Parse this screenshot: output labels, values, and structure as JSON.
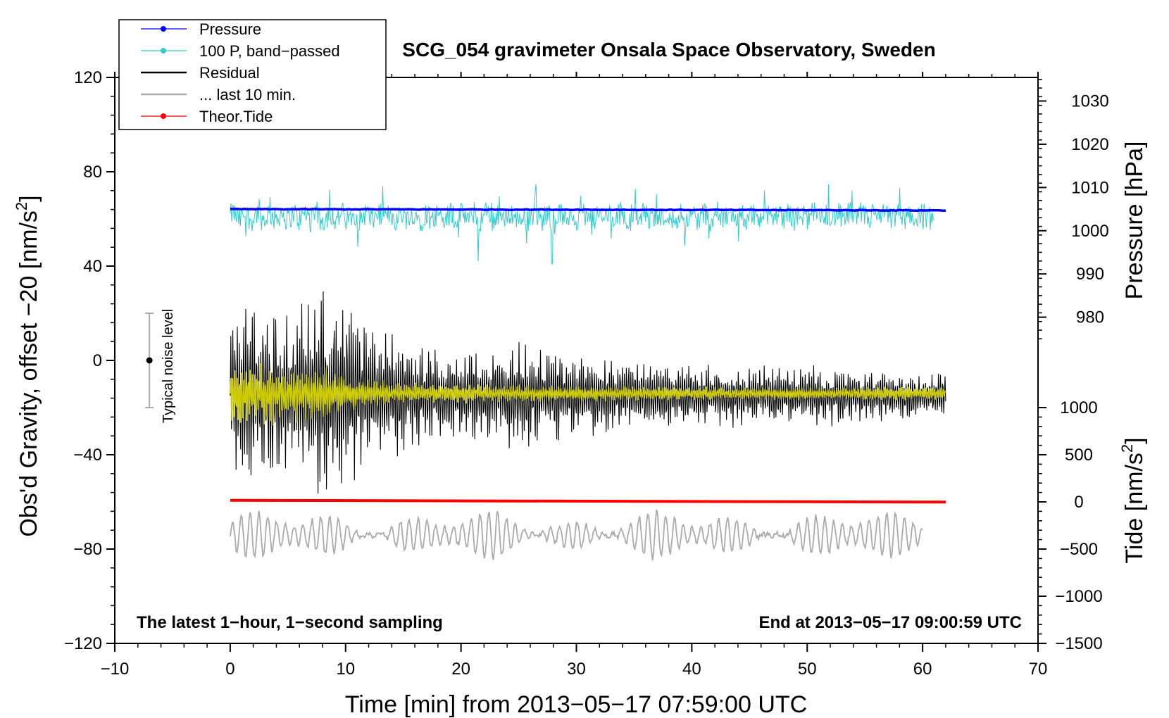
{
  "chart_data": {
    "type": "line",
    "title": "SCG_054 gravimeter Onsala Space Observatory, Sweden",
    "xlabel": "Time [min] from 2013−05−17 07:59:00 UTC",
    "ylabel_left": "Obs'd Gravity, offset −20 [nm/s²]",
    "ylabel_left_base": "Obs'd Gravity, offset −20 [nm/s",
    "ylabel_left_sup": "2",
    "ylabel_left_end": "]",
    "ylabel_right_top": "Pressure [hPa]",
    "ylabel_right_bottom_base": "Tide [nm/s",
    "ylabel_right_bottom_sup": "2",
    "ylabel_right_bottom_end": "]",
    "xlim": [
      -10,
      70
    ],
    "ylim": [
      -120,
      120
    ],
    "x_ticks": [
      {
        "value": -10,
        "label": "−10"
      },
      {
        "value": 0,
        "label": "0"
      },
      {
        "value": 10,
        "label": "10"
      },
      {
        "value": 20,
        "label": "20"
      },
      {
        "value": 30,
        "label": "30"
      },
      {
        "value": 40,
        "label": "40"
      },
      {
        "value": 50,
        "label": "50"
      },
      {
        "value": 60,
        "label": "60"
      },
      {
        "value": 70,
        "label": "70"
      }
    ],
    "y_ticks_left": [
      {
        "value": 120,
        "label": "120"
      },
      {
        "value": 80,
        "label": "80"
      },
      {
        "value": 40,
        "label": "40"
      },
      {
        "value": 0,
        "label": "0"
      },
      {
        "value": -40,
        "label": "−40"
      },
      {
        "value": -80,
        "label": "−80"
      },
      {
        "value": -120,
        "label": "−120"
      }
    ],
    "pressure_axis": {
      "ticks": [
        {
          "value": 1030,
          "label": "1030"
        },
        {
          "value": 1020,
          "label": "1020"
        },
        {
          "value": 1010,
          "label": "1010"
        },
        {
          "value": 1000,
          "label": "1000"
        },
        {
          "value": 990,
          "label": "990"
        },
        {
          "value": 980,
          "label": "980"
        }
      ],
      "map_to_left": {
        "hpa_a": 1000,
        "left_a": 55,
        "hpa_b": 1030,
        "left_b": 110
      }
    },
    "tide_axis": {
      "ticks": [
        {
          "value": 1000,
          "label": "1000"
        },
        {
          "value": 500,
          "label": "500"
        },
        {
          "value": 0,
          "label": "0"
        },
        {
          "value": -500,
          "label": "−500"
        },
        {
          "value": -1000,
          "label": "−1000"
        },
        {
          "value": -1500,
          "label": "−1500"
        }
      ],
      "map_to_left": {
        "tide_a": 0,
        "left_a": -60,
        "tide_b": 1000,
        "left_b": -20
      }
    },
    "legend": [
      {
        "label": "Pressure",
        "color": "#0000ff",
        "marker": true
      },
      {
        "label": "100 P, band−passed",
        "color": "#33cccc",
        "marker": true
      },
      {
        "label": "Residual",
        "color": "#000000",
        "marker": false
      },
      {
        "label": "... last 10 min.",
        "color": "#aaaaaa",
        "marker": false
      },
      {
        "label": "Theor.Tide",
        "color": "#ff0000",
        "marker": true
      }
    ],
    "series": [
      {
        "name": "Pressure",
        "color": "#0000ff",
        "hpa_start": 1005.0,
        "hpa_end": 1004.7,
        "x_start": 0,
        "x_end": 62
      },
      {
        "name": "100 P, band-passed",
        "color": "#33cccc",
        "baseline": 61,
        "amplitude": 5,
        "spikes_down": [
          [
            21.5,
            42
          ],
          [
            27.9,
            41
          ]
        ],
        "x_start": 0,
        "x_end": 61
      },
      {
        "name": "Residual",
        "color": "#000000",
        "baseline": -15,
        "envelope": [
          [
            0,
            32
          ],
          [
            2,
            40
          ],
          [
            5,
            38
          ],
          [
            8,
            48
          ],
          [
            12,
            32
          ],
          [
            18,
            20
          ],
          [
            22,
            20
          ],
          [
            25,
            24
          ],
          [
            30,
            18
          ],
          [
            40,
            14
          ],
          [
            50,
            14
          ],
          [
            62,
            10
          ]
        ],
        "x_start": 0,
        "x_end": 62
      },
      {
        "name": "Residual smoothed",
        "color": "#cccc00",
        "baseline": -14,
        "envelope": [
          [
            0,
            14
          ],
          [
            3,
            14
          ],
          [
            8,
            12
          ],
          [
            10,
            8
          ],
          [
            15,
            5
          ],
          [
            25,
            4
          ],
          [
            40,
            3
          ],
          [
            62,
            3
          ]
        ],
        "x_start": 0,
        "x_end": 62
      },
      {
        "name": "... last 10 min.",
        "color": "#aaaaaa",
        "baseline": -74,
        "amplitude": 8,
        "x_start": 0,
        "x_end": 60
      },
      {
        "name": "Theor.Tide",
        "color": "#ff0000",
        "tide_start": 17,
        "tide_end": -2,
        "x_start": 0,
        "x_end": 62
      }
    ],
    "noise_bar": {
      "x": -7,
      "center": 0,
      "low": -20,
      "high": 20,
      "label": "Typical noise level"
    },
    "annotations": {
      "left": "The latest 1−hour, 1−second sampling",
      "right": "End at 2013−05−17 09:00:59 UTC"
    }
  }
}
